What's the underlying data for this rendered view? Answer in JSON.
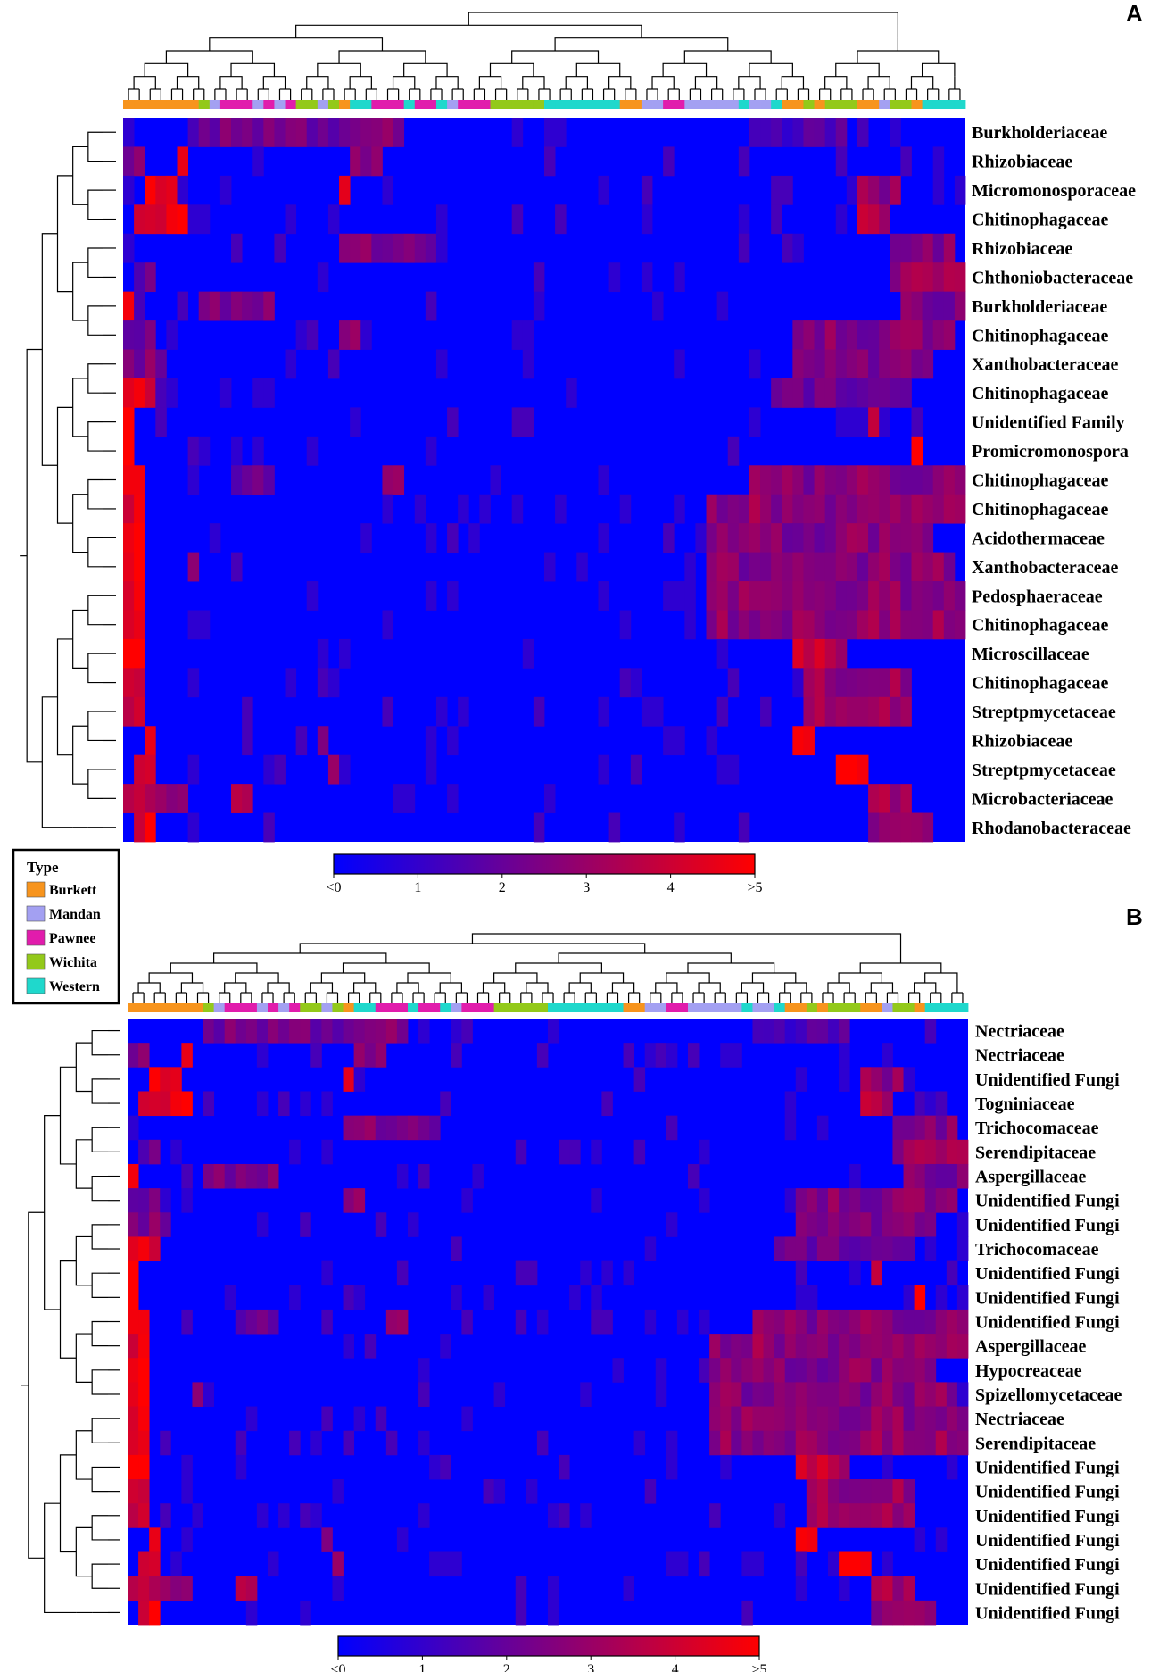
{
  "colors": {
    "low": "#0000ff",
    "high": "#ff0000",
    "Burkett": "#f7941d",
    "Mandan": "#a3a0f2",
    "Pawnee": "#e11cac",
    "Wichita": "#93c91a",
    "Western": "#1fd8cc"
  },
  "legend": {
    "title": "Type",
    "items": [
      "Burkett",
      "Mandan",
      "Pawnee",
      "Wichita",
      "Western"
    ]
  },
  "colorbar": {
    "ticks": [
      "<0",
      "1",
      "2",
      "3",
      "4",
      ">5"
    ]
  },
  "chart_data": [
    {
      "type": "heatmap",
      "panel": "A",
      "value_range": [
        0,
        5
      ],
      "rows": [
        "Burkholderiaceae",
        "Rhizobiaceae",
        "Micromonosporaceae",
        "Chitinophagaceae",
        "Rhizobiaceae",
        "Chthoniobacteraceae",
        "Burkholderiaceae",
        "Chitinophagaceae",
        "Xanthobacteraceae",
        "Chitinophagaceae",
        "Unidentified Family",
        "Promicromonospora",
        "Chitinophagaceae",
        "Chitinophagaceae",
        "Acidothermaceae",
        "Xanthobacteraceae",
        "Pedosphaeraceae",
        "Chitinophagaceae",
        "Microscillaceae",
        "Chitinophagaceae",
        "Streptpmycetaceae",
        "Rhizobiaceae",
        "Streptpmycetaceae",
        "Microbacteriaceae",
        "Rhodanobacteraceae"
      ],
      "column_types": [
        "Burkett",
        "Burkett",
        "Burkett",
        "Burkett",
        "Burkett",
        "Burkett",
        "Burkett",
        "Wichita",
        "Mandan",
        "Pawnee",
        "Pawnee",
        "Pawnee",
        "Mandan",
        "Pawnee",
        "Mandan",
        "Pawnee",
        "Wichita",
        "Wichita",
        "Mandan",
        "Wichita",
        "Burkett",
        "Western",
        "Western",
        "Pawnee",
        "Pawnee",
        "Pawnee",
        "Western",
        "Pawnee",
        "Pawnee",
        "Western",
        "Mandan",
        "Pawnee",
        "Pawnee",
        "Pawnee",
        "Wichita",
        "Wichita",
        "Wichita",
        "Wichita",
        "Wichita",
        "Western",
        "Western",
        "Western",
        "Western",
        "Western",
        "Western",
        "Western",
        "Burkett",
        "Burkett",
        "Mandan",
        "Mandan",
        "Pawnee",
        "Pawnee",
        "Mandan",
        "Mandan",
        "Mandan",
        "Mandan",
        "Mandan",
        "Western",
        "Mandan",
        "Mandan",
        "Western",
        "Burkett",
        "Burkett",
        "Wichita",
        "Burkett",
        "Wichita",
        "Wichita",
        "Wichita",
        "Burkett",
        "Burkett",
        "Mandan",
        "Wichita",
        "Wichita",
        "Burkett",
        "Western",
        "Western",
        "Western",
        "Western"
      ],
      "hotspots": [
        [
          0,
          [
            [
              7,
              25,
              2.3
            ],
            [
              58,
              66,
              1.6
            ]
          ]
        ],
        [
          1,
          [
            [
              0,
              1,
              2.4
            ],
            [
              5,
              5,
              5
            ],
            [
              21,
              23,
              3
            ]
          ]
        ],
        [
          2,
          [
            [
              2,
              4,
              4.4
            ],
            [
              20,
              20,
              4.4
            ],
            [
              68,
              71,
              2.8
            ]
          ]
        ],
        [
          3,
          [
            [
              1,
              5,
              4.6
            ],
            [
              68,
              70,
              3.4
            ]
          ]
        ],
        [
          4,
          [
            [
              20,
              28,
              2.4
            ],
            [
              71,
              76,
              2.6
            ]
          ]
        ],
        [
          5,
          [
            [
              1,
              2,
              2.2
            ],
            [
              71,
              77,
              2.9
            ]
          ]
        ],
        [
          6,
          [
            [
              0,
              0,
              4.2
            ],
            [
              7,
              13,
              2.5
            ],
            [
              72,
              77,
              2.4
            ]
          ]
        ],
        [
          7,
          [
            [
              0,
              2,
              2.3
            ],
            [
              20,
              21,
              2.4
            ],
            [
              62,
              76,
              2.6
            ]
          ]
        ],
        [
          8,
          [
            [
              0,
              3,
              2.4
            ],
            [
              62,
              74,
              2.2
            ]
          ]
        ],
        [
          9,
          [
            [
              0,
              2,
              4.5
            ],
            [
              60,
              72,
              2.3
            ]
          ]
        ],
        [
          10,
          [
            [
              0,
              0,
              5
            ],
            [
              69,
              69,
              4.2
            ]
          ]
        ],
        [
          11,
          [
            [
              0,
              0,
              5
            ],
            [
              73,
              73,
              4.6
            ]
          ]
        ],
        [
          12,
          [
            [
              0,
              1,
              4.6
            ],
            [
              10,
              13,
              2.2
            ],
            [
              24,
              25,
              2.4
            ],
            [
              58,
              77,
              2.6
            ]
          ]
        ],
        [
          13,
          [
            [
              0,
              1,
              4.6
            ],
            [
              54,
              77,
              2.8
            ]
          ]
        ],
        [
          14,
          [
            [
              0,
              1,
              4.6
            ],
            [
              54,
              74,
              2.6
            ]
          ]
        ],
        [
          15,
          [
            [
              0,
              1,
              4.6
            ],
            [
              6,
              6,
              2.8
            ],
            [
              54,
              76,
              2.6
            ]
          ]
        ],
        [
          16,
          [
            [
              0,
              1,
              4.8
            ],
            [
              54,
              77,
              2.8
            ]
          ]
        ],
        [
          17,
          [
            [
              0,
              1,
              4.8
            ],
            [
              54,
              77,
              2.8
            ]
          ]
        ],
        [
          18,
          [
            [
              0,
              1,
              5
            ],
            [
              63,
              66,
              3.4
            ],
            [
              62,
              64,
              4.2
            ]
          ]
        ],
        [
          19,
          [
            [
              0,
              1,
              4.2
            ],
            [
              63,
              72,
              3
            ]
          ]
        ],
        [
          20,
          [
            [
              0,
              1,
              4.2
            ],
            [
              63,
              72,
              3.2
            ]
          ]
        ],
        [
          21,
          [
            [
              2,
              2,
              4
            ],
            [
              18,
              18,
              2.4
            ],
            [
              62,
              63,
              4.8
            ]
          ]
        ],
        [
          22,
          [
            [
              1,
              2,
              4.6
            ],
            [
              19,
              19,
              3.2
            ],
            [
              66,
              68,
              4.6
            ]
          ]
        ],
        [
          23,
          [
            [
              0,
              5,
              3.2
            ],
            [
              10,
              11,
              3.6
            ],
            [
              69,
              72,
              3.2
            ]
          ]
        ],
        [
          24,
          [
            [
              1,
              2,
              4.6
            ],
            [
              69,
              74,
              2.6
            ]
          ]
        ]
      ]
    },
    {
      "type": "heatmap",
      "panel": "B",
      "value_range": [
        0,
        5
      ],
      "rows": [
        "Nectriaceae",
        "Nectriaceae",
        "Unidentified Fungi",
        "Togniniaceae",
        "Trichocomaceae",
        "Serendipitaceae",
        "Aspergillaceae",
        "Unidentified Fungi",
        "Unidentified Fungi",
        "Trichocomaceae",
        "Unidentified Fungi",
        "Unidentified Fungi",
        "Unidentified Fungi",
        "Aspergillaceae",
        "Hypocreaceae",
        "Spizellomycetaceae",
        "Nectriaceae",
        "Serendipitaceae",
        "Unidentified Fungi",
        "Unidentified Fungi",
        "Unidentified Fungi",
        "Unidentified Fungi",
        "Unidentified Fungi",
        "Unidentified Fungi",
        "Unidentified Fungi"
      ],
      "column_types": [
        "Burkett",
        "Burkett",
        "Burkett",
        "Burkett",
        "Burkett",
        "Burkett",
        "Burkett",
        "Wichita",
        "Mandan",
        "Pawnee",
        "Pawnee",
        "Pawnee",
        "Mandan",
        "Pawnee",
        "Mandan",
        "Pawnee",
        "Wichita",
        "Wichita",
        "Mandan",
        "Wichita",
        "Burkett",
        "Western",
        "Western",
        "Pawnee",
        "Pawnee",
        "Pawnee",
        "Western",
        "Pawnee",
        "Pawnee",
        "Western",
        "Mandan",
        "Pawnee",
        "Pawnee",
        "Pawnee",
        "Wichita",
        "Wichita",
        "Wichita",
        "Wichita",
        "Wichita",
        "Western",
        "Western",
        "Western",
        "Western",
        "Western",
        "Western",
        "Western",
        "Burkett",
        "Burkett",
        "Mandan",
        "Mandan",
        "Pawnee",
        "Pawnee",
        "Mandan",
        "Mandan",
        "Mandan",
        "Mandan",
        "Mandan",
        "Western",
        "Mandan",
        "Mandan",
        "Western",
        "Burkett",
        "Burkett",
        "Wichita",
        "Burkett",
        "Wichita",
        "Wichita",
        "Wichita",
        "Burkett",
        "Burkett",
        "Mandan",
        "Wichita",
        "Wichita",
        "Burkett",
        "Western",
        "Western",
        "Western",
        "Western"
      ],
      "hotspots": [
        [
          0,
          [
            [
              7,
              25,
              2.3
            ],
            [
              58,
              66,
              1.6
            ]
          ]
        ],
        [
          1,
          [
            [
              0,
              1,
              2.4
            ],
            [
              5,
              5,
              5
            ],
            [
              21,
              23,
              3
            ]
          ]
        ],
        [
          2,
          [
            [
              2,
              4,
              4.4
            ],
            [
              20,
              20,
              4.4
            ],
            [
              68,
              71,
              2.8
            ]
          ]
        ],
        [
          3,
          [
            [
              1,
              5,
              4.6
            ],
            [
              68,
              70,
              3.4
            ]
          ]
        ],
        [
          4,
          [
            [
              20,
              28,
              2.4
            ],
            [
              71,
              76,
              2.6
            ]
          ]
        ],
        [
          5,
          [
            [
              1,
              2,
              2.2
            ],
            [
              71,
              77,
              2.9
            ]
          ]
        ],
        [
          6,
          [
            [
              0,
              0,
              4.2
            ],
            [
              7,
              13,
              2.5
            ],
            [
              72,
              77,
              2.4
            ]
          ]
        ],
        [
          7,
          [
            [
              0,
              2,
              2.3
            ],
            [
              20,
              21,
              2.4
            ],
            [
              62,
              76,
              2.6
            ]
          ]
        ],
        [
          8,
          [
            [
              0,
              3,
              2.4
            ],
            [
              62,
              74,
              2.2
            ]
          ]
        ],
        [
          9,
          [
            [
              0,
              2,
              4.5
            ],
            [
              60,
              72,
              2.3
            ]
          ]
        ],
        [
          10,
          [
            [
              0,
              0,
              5
            ],
            [
              69,
              69,
              4.2
            ]
          ]
        ],
        [
          11,
          [
            [
              0,
              0,
              5
            ],
            [
              73,
              73,
              4.6
            ]
          ]
        ],
        [
          12,
          [
            [
              0,
              1,
              4.6
            ],
            [
              10,
              13,
              2.2
            ],
            [
              24,
              25,
              2.4
            ],
            [
              58,
              77,
              2.6
            ]
          ]
        ],
        [
          13,
          [
            [
              0,
              1,
              4.6
            ],
            [
              54,
              77,
              2.8
            ]
          ]
        ],
        [
          14,
          [
            [
              0,
              1,
              4.6
            ],
            [
              54,
              74,
              2.6
            ]
          ]
        ],
        [
          15,
          [
            [
              0,
              1,
              4.6
            ],
            [
              6,
              6,
              2.8
            ],
            [
              54,
              76,
              2.6
            ]
          ]
        ],
        [
          16,
          [
            [
              0,
              1,
              4.8
            ],
            [
              54,
              77,
              2.8
            ]
          ]
        ],
        [
          17,
          [
            [
              0,
              1,
              4.8
            ],
            [
              54,
              77,
              2.8
            ]
          ]
        ],
        [
          18,
          [
            [
              0,
              1,
              5
            ],
            [
              63,
              66,
              3.4
            ],
            [
              62,
              64,
              4.2
            ]
          ]
        ],
        [
          19,
          [
            [
              0,
              1,
              4.2
            ],
            [
              63,
              72,
              3
            ]
          ]
        ],
        [
          20,
          [
            [
              0,
              1,
              4.2
            ],
            [
              63,
              72,
              3.2
            ]
          ]
        ],
        [
          21,
          [
            [
              2,
              2,
              4
            ],
            [
              18,
              18,
              2.4
            ],
            [
              62,
              63,
              4.8
            ]
          ]
        ],
        [
          22,
          [
            [
              1,
              2,
              4.6
            ],
            [
              19,
              19,
              3.2
            ],
            [
              66,
              68,
              4.6
            ]
          ]
        ],
        [
          23,
          [
            [
              0,
              5,
              3.2
            ],
            [
              10,
              11,
              3.6
            ],
            [
              69,
              72,
              3.2
            ]
          ]
        ],
        [
          24,
          [
            [
              1,
              2,
              4.6
            ],
            [
              69,
              74,
              2.6
            ]
          ]
        ]
      ]
    }
  ]
}
